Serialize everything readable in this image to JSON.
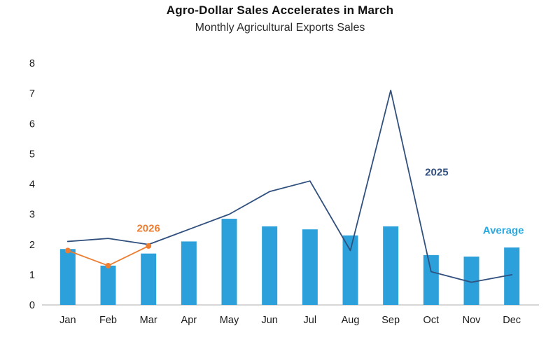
{
  "header": {
    "title": "Agro-Dollar Sales Accelerates in March",
    "subtitle": "Monthly Agricultural Exports Sales"
  },
  "chart_data": {
    "type": "bar",
    "title": "Agro-Dollar Sales Accelerates in March",
    "subtitle": "Monthly Agricultural Exports Sales",
    "categories": [
      "Jan",
      "Feb",
      "Mar",
      "Apr",
      "May",
      "Jun",
      "Jul",
      "Aug",
      "Sep",
      "Oct",
      "Nov",
      "Dec"
    ],
    "ylim": [
      0,
      8
    ],
    "yticks": [
      0,
      1,
      2,
      3,
      4,
      5,
      6,
      7,
      8
    ],
    "grid": false,
    "axis_color": "#bfbfbf",
    "tick_label_color": "#1a1a1a",
    "series": [
      {
        "name": "Average",
        "kind": "bar",
        "color": "#2ba0da",
        "values": [
          1.85,
          1.3,
          1.7,
          2.1,
          2.85,
          2.6,
          2.5,
          2.3,
          2.6,
          1.65,
          1.6,
          1.9
        ]
      },
      {
        "name": "2025",
        "kind": "line",
        "color": "#31507e",
        "marker": false,
        "values": [
          2.1,
          2.2,
          2.0,
          2.5,
          3.0,
          3.75,
          4.1,
          1.8,
          7.1,
          1.1,
          0.75,
          1.0
        ]
      },
      {
        "name": "2026",
        "kind": "line",
        "color": "#ed7d31",
        "marker": true,
        "values": [
          1.8,
          1.3,
          1.95,
          null,
          null,
          null,
          null,
          null,
          null,
          null,
          null,
          null
        ]
      }
    ],
    "annotations": [
      {
        "text": "2026",
        "color": "#ed7d31",
        "x": 2.0,
        "y": 2.42,
        "anchor": "middle"
      },
      {
        "text": "2025",
        "color": "#31507e",
        "x": 8.85,
        "y": 4.28,
        "anchor": "start"
      },
      {
        "text": "Average",
        "color": "#29a9e0",
        "x": 11.3,
        "y": 2.35,
        "anchor": "end"
      }
    ]
  }
}
